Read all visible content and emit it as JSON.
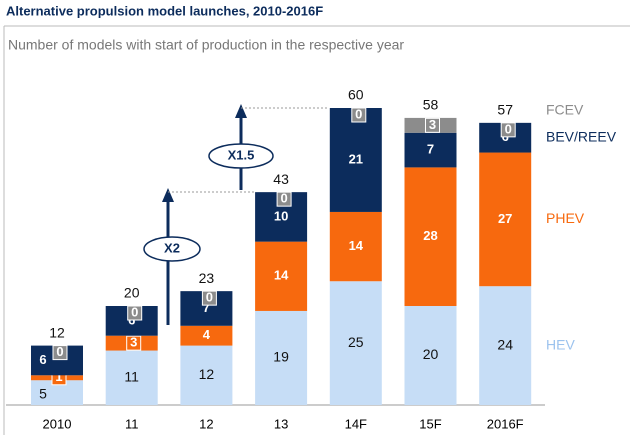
{
  "chart_data": {
    "type": "stacked_bar",
    "title": "Alternative propulsion model launches, 2010-2016F",
    "subtitle": "Number of models with start of production in the respective year",
    "categories": [
      "2010",
      "11",
      "12",
      "13",
      "14F",
      "15F",
      "2016F"
    ],
    "series": [
      {
        "name": "HEV",
        "color": "#c6ddf6",
        "values": [
          5,
          11,
          12,
          19,
          25,
          20,
          24
        ]
      },
      {
        "name": "PHEV",
        "color": "#f7690e",
        "values": [
          1,
          3,
          4,
          14,
          14,
          28,
          27
        ]
      },
      {
        "name": "BEV/REEV",
        "color": "#0c2c5c",
        "values": [
          6,
          6,
          7,
          10,
          21,
          7,
          6
        ]
      },
      {
        "name": "FCEV",
        "color": "#8c8c8c",
        "values": [
          0,
          0,
          0,
          0,
          0,
          3,
          0
        ]
      }
    ],
    "totals": [
      12,
      20,
      23,
      43,
      60,
      58,
      57
    ],
    "annotations": [
      "X2",
      "X1.5"
    ]
  }
}
